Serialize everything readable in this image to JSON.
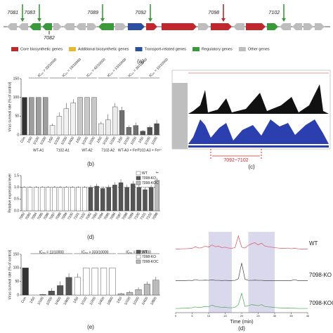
{
  "gene_cluster": {
    "labels_top": [
      "7081",
      "7083",
      "7089",
      "7092",
      "7098",
      "7102"
    ],
    "labels_bottom": [
      "7082"
    ],
    "panel_label": "(a)"
  },
  "gene_legend": [
    {
      "name": "Core biosynthetic genes",
      "color": "#c0282d"
    },
    {
      "name": "Additional biosynthetic genes",
      "color": "#e8b830"
    },
    {
      "name": "Transport-related genes",
      "color": "#2b4fa0"
    },
    {
      "name": "Regulatory genes",
      "color": "#3a9a3a"
    },
    {
      "name": "Other genes",
      "color": "#bdbdbd"
    }
  ],
  "genome_browser": {
    "region_label": "7092~7102",
    "panel_label": "(c)"
  },
  "chart_data": [
    {
      "type": "bar",
      "panel_label": "(b)",
      "y_label": "Virus survival rate (% of control)",
      "categories": [
        "Con",
        "1/50",
        "1/100",
        "1/200",
        "1/50",
        "1/100",
        "1/200",
        "1/400",
        "1/50",
        "1/100",
        "1/200",
        "1/50",
        "1/100",
        "1/200",
        "1/50",
        "1/100",
        "1/200",
        "1/50",
        "1/100",
        "1/200"
      ],
      "values": [
        100,
        100,
        100,
        100,
        25,
        50,
        70,
        85,
        100,
        100,
        100,
        30,
        40,
        75,
        65,
        20,
        25,
        10,
        20,
        30
      ],
      "errors": [
        0,
        0,
        0,
        0,
        5,
        10,
        15,
        10,
        0,
        0,
        0,
        5,
        15,
        10,
        10,
        5,
        8,
        3,
        5,
        10
      ],
      "colors": [
        "#333333",
        "#9e9e9e",
        "#9e9e9e",
        "#9e9e9e",
        "#f2f2f2",
        "#f2f2f2",
        "#f2f2f2",
        "#f2f2f2",
        "#c8c8c8",
        "#c8c8c8",
        "#c8c8c8",
        "#ececec",
        "#ececec",
        "#ececec",
        "#707070",
        "#707070",
        "#707070",
        "#505050",
        "#505050",
        "#505050"
      ],
      "groups": [
        {
          "label": "WT-A1",
          "start": 1,
          "end": 3,
          "annotation": "IC₅₀ > 33/10000"
        },
        {
          "label": "7102-A1",
          "start": 4,
          "end": 7,
          "annotation": "IC₅₀ = 15/10000"
        },
        {
          "label": "WT-A2",
          "start": 8,
          "end": 10,
          "annotation": "IC₅₀ > 42/10000"
        },
        {
          "label": "7102-A2",
          "start": 11,
          "end": 13,
          "annotation": "IC₅₀ = 13/10000"
        },
        {
          "label": "WT-A3 + Fe³⁺",
          "start": 14,
          "end": 16,
          "annotation": "IC₅₀ = 30/10000"
        },
        {
          "label": "7102-A3 + Fe³⁺",
          "start": 17,
          "end": 19,
          "annotation": "IC₅₀ = 10/10000"
        }
      ],
      "ylim": [
        0,
        150
      ],
      "yticks": [
        0,
        50,
        100,
        150
      ]
    },
    {
      "type": "bar",
      "panel_label": "(d)",
      "y_label": "Relative expression level",
      "categories": [
        "7092",
        "7093",
        "7094",
        "7095",
        "7096",
        "7097",
        "7098",
        "7099",
        "7100",
        "7101",
        "7102",
        "7092",
        "7093",
        "7094",
        "7095",
        "7096",
        "7097",
        "7098",
        "7099",
        "7100",
        "7101",
        "7102",
        "7098"
      ],
      "values": [
        1,
        1,
        1,
        1,
        1,
        1,
        1,
        1,
        1,
        1,
        1,
        1.0,
        1.05,
        0.95,
        1.0,
        1.1,
        1.2,
        1.0,
        1.15,
        1.0,
        0.9,
        1.0,
        1.3
      ],
      "errors": [
        0.05,
        0.05,
        0.05,
        0.05,
        0.05,
        0.05,
        0.05,
        0.05,
        0.05,
        0.05,
        0.05,
        0.1,
        0.1,
        0.08,
        0.1,
        0.12,
        0.15,
        0.1,
        0.12,
        0.1,
        0.1,
        0.1,
        0.1
      ],
      "colors": [
        "#ffffff",
        "#ffffff",
        "#ffffff",
        "#ffffff",
        "#ffffff",
        "#ffffff",
        "#ffffff",
        "#ffffff",
        "#ffffff",
        "#ffffff",
        "#ffffff",
        "#555555",
        "#555555",
        "#555555",
        "#555555",
        "#555555",
        "#555555",
        "#555555",
        "#555555",
        "#555555",
        "#555555",
        "#555555",
        "#bbbbbb"
      ],
      "groups": [
        {
          "start": 22,
          "end": 22,
          "annotation": "**"
        }
      ],
      "reference_line": 1,
      "legend": [
        {
          "name": "WT",
          "color": "#ffffff"
        },
        {
          "name": "7098-KO",
          "color": "#555555"
        },
        {
          "name": "7098-KOC",
          "color": "#bbbbbb"
        }
      ],
      "ylim": [
        0,
        1.5
      ],
      "yticks": [
        {
          "value": 0,
          "label": "0.0"
        },
        {
          "value": 0.5,
          "label": "0.5"
        },
        {
          "value": 1,
          "label": "1.0"
        },
        {
          "value": 1.5,
          "label": "1.5"
        }
      ]
    },
    {
      "type": "bar",
      "panel_label": "(e)",
      "y_label": "Virus survival rate (% of control)",
      "categories": [
        "Con",
        "1/50",
        "1/100",
        "1/200",
        "1/400",
        "1/800",
        "1/50",
        "1/100",
        "1/200",
        "1/400",
        "1/800",
        "1/50",
        "1/100",
        "1/200",
        "1/400",
        "1/800"
      ],
      "values": [
        100,
        0,
        2,
        15,
        35,
        65,
        65,
        100,
        100,
        100,
        100,
        5,
        10,
        20,
        40,
        55
      ],
      "errors": [
        0,
        0,
        2,
        10,
        15,
        15,
        15,
        0,
        0,
        0,
        0,
        3,
        5,
        8,
        10,
        12
      ],
      "colors": [
        "#333333",
        "#555555",
        "#555555",
        "#555555",
        "#555555",
        "#555555",
        "#ffffff",
        "#ffffff",
        "#ffffff",
        "#ffffff",
        "#ffffff",
        "#bbbbbb",
        "#bbbbbb",
        "#bbbbbb",
        "#bbbbbb",
        "#bbbbbb"
      ],
      "groups": [
        {
          "start": 1,
          "end": 5,
          "annotation": "IC₅₀ = 11/10000"
        },
        {
          "start": 6,
          "end": 10,
          "annotation": "IC₅₀ > 333/10000"
        },
        {
          "start": 11,
          "end": 15,
          "annotation": "IC₅₀ = 44/10000"
        }
      ],
      "legend": [
        {
          "name": "WT",
          "color": "#555555"
        },
        {
          "name": "7098-KO",
          "color": "#ffffff"
        },
        {
          "name": "7098-KOC",
          "color": "#bbbbbb"
        }
      ],
      "ylim": [
        0,
        150
      ],
      "yticks": [
        0,
        50,
        100,
        150
      ]
    },
    {
      "type": "line",
      "panel_label": "(d)",
      "x_label": "Time (min)",
      "x": [
        0,
        1,
        2,
        3,
        4,
        5,
        6,
        7,
        8,
        9,
        10,
        11,
        12,
        13,
        14,
        15,
        16,
        17,
        18,
        19,
        20,
        21,
        22,
        23,
        24,
        25,
        26,
        27,
        28,
        29,
        30,
        31,
        32,
        33,
        34,
        35,
        36,
        37,
        38,
        39,
        40
      ],
      "xlim": [
        0,
        40
      ],
      "xticks": [
        0,
        5,
        10,
        15,
        20,
        25,
        30,
        35,
        40
      ],
      "highlight_ranges": [
        [
          10,
          17
        ],
        [
          22,
          30
        ]
      ],
      "series": [
        {
          "name": "WT",
          "color": "#e0505a",
          "values": [
            2,
            2,
            3,
            3,
            4,
            5,
            12,
            6,
            8,
            15,
            10,
            20,
            12,
            14,
            8,
            10,
            6,
            5,
            8,
            60,
            10,
            6,
            18,
            25,
            30,
            20,
            28,
            15,
            12,
            10,
            8,
            6,
            5,
            4,
            6,
            3,
            5,
            3,
            2,
            2,
            2
          ]
        },
        {
          "name": "7098-KO",
          "color": "#444444",
          "values": [
            2,
            2,
            2,
            2,
            3,
            2,
            6,
            3,
            3,
            4,
            3,
            5,
            3,
            3,
            2,
            3,
            2,
            2,
            3,
            10,
            80,
            8,
            3,
            3,
            4,
            3,
            3,
            2,
            2,
            2,
            2,
            2,
            2,
            2,
            2,
            2,
            6,
            2,
            2,
            2,
            2
          ]
        },
        {
          "name": "7098-KOC",
          "color": "#49a84c",
          "values": [
            3,
            3,
            4,
            4,
            5,
            6,
            10,
            7,
            9,
            12,
            10,
            18,
            12,
            10,
            8,
            9,
            6,
            6,
            8,
            20,
            70,
            12,
            15,
            20,
            18,
            15,
            20,
            12,
            10,
            9,
            7,
            6,
            5,
            4,
            5,
            4,
            4,
            3,
            3,
            3,
            3
          ]
        }
      ]
    }
  ]
}
